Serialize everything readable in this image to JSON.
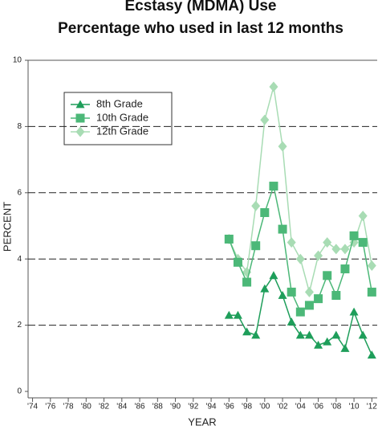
{
  "chart_data": {
    "type": "line",
    "title": "Ecstasy (MDMA) Use",
    "subtitle": "Percentage who used in last 12 months",
    "xlabel": "YEAR",
    "ylabel": "PERCENT",
    "x": [
      1996,
      1997,
      1998,
      1999,
      2000,
      2001,
      2002,
      2003,
      2004,
      2005,
      2006,
      2007,
      2008,
      2009,
      2010,
      2011,
      2012
    ],
    "series": [
      {
        "name": "8th Grade",
        "color": "#1e9e5a",
        "marker": "triangle",
        "values": [
          2.3,
          2.3,
          1.8,
          1.7,
          3.1,
          3.5,
          2.9,
          2.1,
          1.7,
          1.7,
          1.4,
          1.5,
          1.7,
          1.3,
          2.4,
          1.7,
          1.1
        ]
      },
      {
        "name": "10th Grade",
        "color": "#4cb878",
        "marker": "square",
        "values": [
          4.6,
          3.9,
          3.3,
          4.4,
          5.4,
          6.2,
          4.9,
          3.0,
          2.4,
          2.6,
          2.8,
          3.5,
          2.9,
          3.7,
          4.7,
          4.5,
          3.0
        ]
      },
      {
        "name": "12th Grade",
        "color": "#a8dcb4",
        "marker": "diamond",
        "values": [
          4.6,
          4.0,
          3.6,
          5.6,
          8.2,
          9.2,
          7.4,
          4.5,
          4.0,
          3.0,
          4.1,
          4.5,
          4.3,
          4.3,
          4.5,
          5.3,
          3.8
        ]
      }
    ],
    "xlim": [
      1973.5,
      2012.6
    ],
    "xticks": [
      {
        "value": 1974,
        "label": "'74"
      },
      {
        "value": 1976,
        "label": "'76"
      },
      {
        "value": 1978,
        "label": "'78"
      },
      {
        "value": 1980,
        "label": "'80"
      },
      {
        "value": 1982,
        "label": "'82"
      },
      {
        "value": 1984,
        "label": "'84"
      },
      {
        "value": 1986,
        "label": "'86"
      },
      {
        "value": 1988,
        "label": "'88"
      },
      {
        "value": 1990,
        "label": "'90"
      },
      {
        "value": 1992,
        "label": "'92"
      },
      {
        "value": 1994,
        "label": "'94"
      },
      {
        "value": 1996,
        "label": "'96"
      },
      {
        "value": 1998,
        "label": "'98"
      },
      {
        "value": 2000,
        "label": "'00"
      },
      {
        "value": 2002,
        "label": "'02"
      },
      {
        "value": 2004,
        "label": "'04"
      },
      {
        "value": 2006,
        "label": "'06"
      },
      {
        "value": 2008,
        "label": "'08"
      },
      {
        "value": 2010,
        "label": "'10"
      },
      {
        "value": 2012,
        "label": "'12"
      }
    ],
    "ylim": [
      0,
      10
    ],
    "yticks": [
      0,
      2,
      4,
      6,
      8,
      10
    ],
    "grid": true,
    "legend": "upper left"
  }
}
